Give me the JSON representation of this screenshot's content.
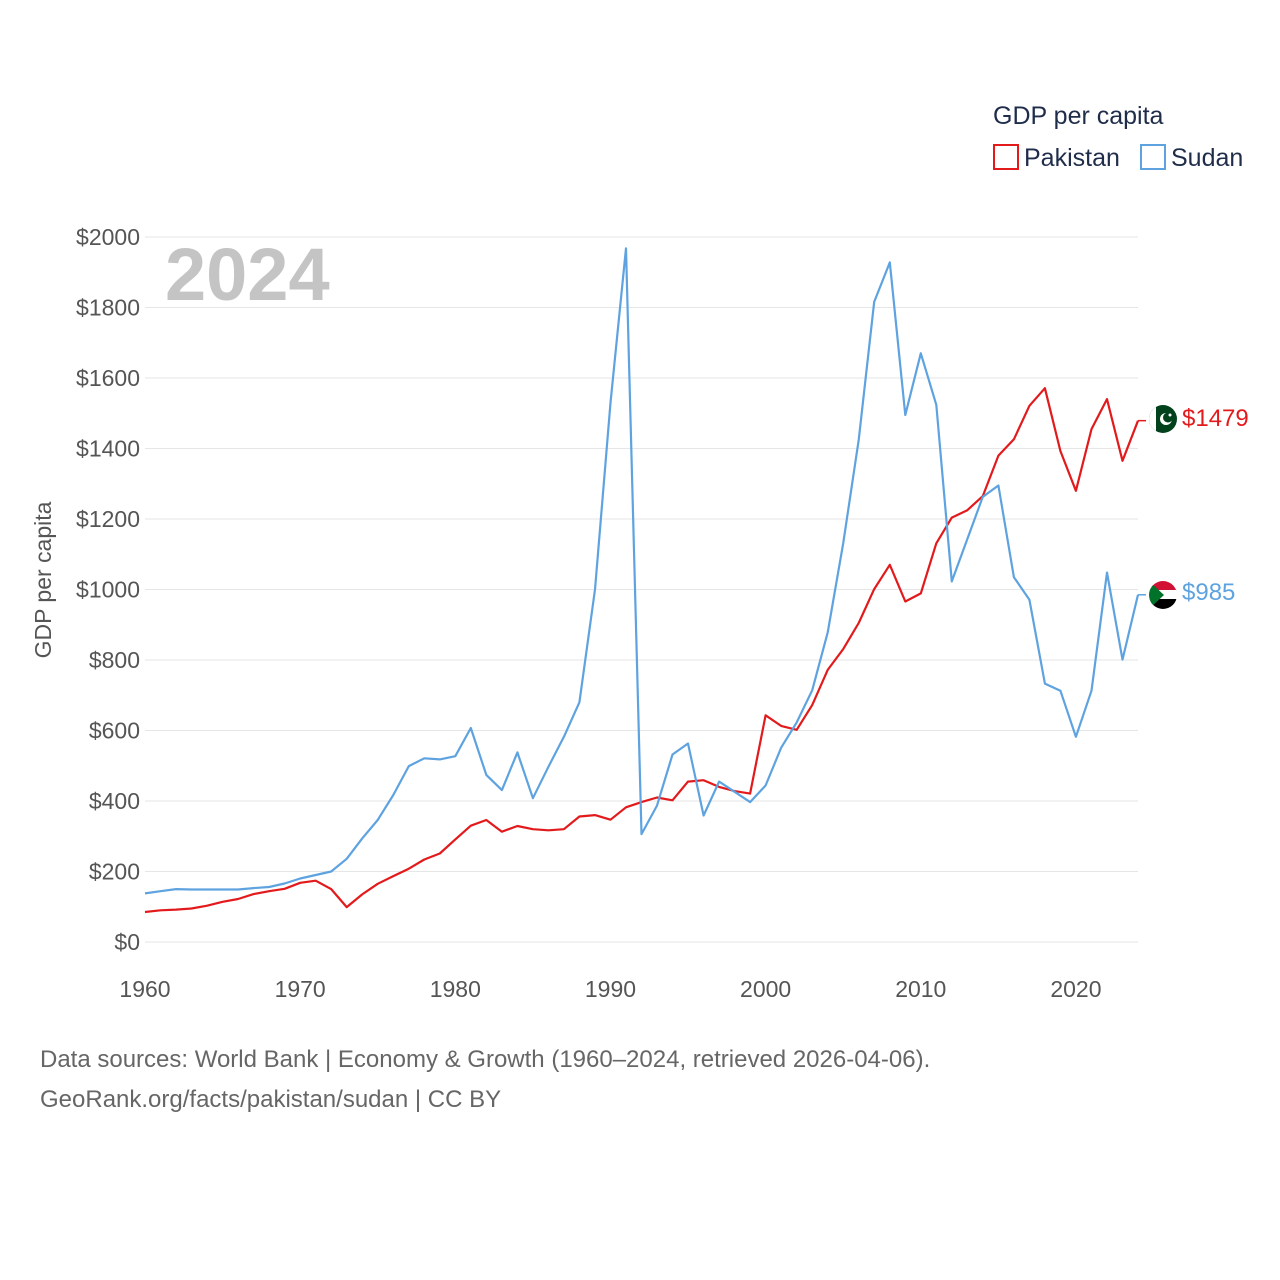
{
  "chart_data": {
    "type": "line",
    "year_label": "2024",
    "ylabel": "GDP per capita",
    "xlabel": "",
    "xlim": [
      1960,
      2024
    ],
    "ylim": [
      0,
      2000
    ],
    "x_ticks": [
      1960,
      1970,
      1980,
      1990,
      2000,
      2010,
      2020
    ],
    "x_tick_labels": [
      "1960",
      "1970",
      "1980",
      "1990",
      "2000",
      "2010",
      "2020"
    ],
    "y_ticks": [
      0,
      200,
      400,
      600,
      800,
      1000,
      1200,
      1400,
      1600,
      1800,
      2000
    ],
    "y_tick_labels": [
      "$0",
      "$200",
      "$400",
      "$600",
      "$800",
      "$1000",
      "$1200",
      "$1400",
      "$1600",
      "$1800",
      "$2000"
    ],
    "legend": {
      "title": "GDP per capita",
      "position": "top-right"
    },
    "years": [
      1960,
      1961,
      1962,
      1963,
      1964,
      1965,
      1966,
      1967,
      1968,
      1969,
      1970,
      1971,
      1972,
      1973,
      1974,
      1975,
      1976,
      1977,
      1978,
      1979,
      1980,
      1981,
      1982,
      1983,
      1984,
      1985,
      1986,
      1987,
      1988,
      1989,
      1990,
      1991,
      1992,
      1993,
      1994,
      1995,
      1996,
      1997,
      1998,
      1999,
      2000,
      2001,
      2002,
      2003,
      2004,
      2005,
      2006,
      2007,
      2008,
      2009,
      2010,
      2011,
      2012,
      2013,
      2014,
      2015,
      2016,
      2017,
      2018,
      2019,
      2020,
      2021,
      2022,
      2023,
      2024
    ],
    "series": [
      {
        "name": "Pakistan",
        "color": "#e31a1c",
        "end_label": "$1479",
        "values": [
          85,
          90,
          92,
          95,
          103,
          114,
          122,
          136,
          144,
          151,
          168,
          174,
          150,
          99,
          135,
          165,
          187,
          208,
          234,
          251,
          291,
          330,
          346,
          313,
          329,
          320,
          317,
          320,
          356,
          360,
          347,
          382,
          397,
          410,
          402,
          455,
          459,
          440,
          428,
          421,
          643,
          613,
          602,
          672,
          772,
          831,
          905,
          1001,
          1070,
          966,
          989,
          1131,
          1204,
          1225,
          1265,
          1380,
          1426,
          1521,
          1571,
          1393,
          1280,
          1455,
          1540,
          1365,
          1479
        ]
      },
      {
        "name": "Sudan",
        "color": "#5ea3e0",
        "end_label": "$985",
        "values": [
          138,
          144,
          150,
          149,
          149,
          149,
          149,
          153,
          156,
          166,
          180,
          190,
          200,
          236,
          294,
          346,
          417,
          499,
          521,
          518,
          527,
          607,
          474,
          431,
          538,
          408,
          497,
          582,
          680,
          1000,
          1530,
          1968,
          306,
          387,
          532,
          563,
          359,
          455,
          426,
          397,
          444,
          551,
          623,
          714,
          878,
          1131,
          1424,
          1816,
          1928,
          1495,
          1670,
          1524,
          1023,
          1143,
          1263,
          1295,
          1035,
          971,
          733,
          713,
          582,
          713,
          1048,
          801,
          985
        ]
      }
    ]
  },
  "source": {
    "line1": "Data sources: World Bank | Economy & Growth (1960–2024, retrieved 2026-04-06).",
    "line2": "GeoRank.org/facts/pakistan/sudan | CC BY"
  }
}
